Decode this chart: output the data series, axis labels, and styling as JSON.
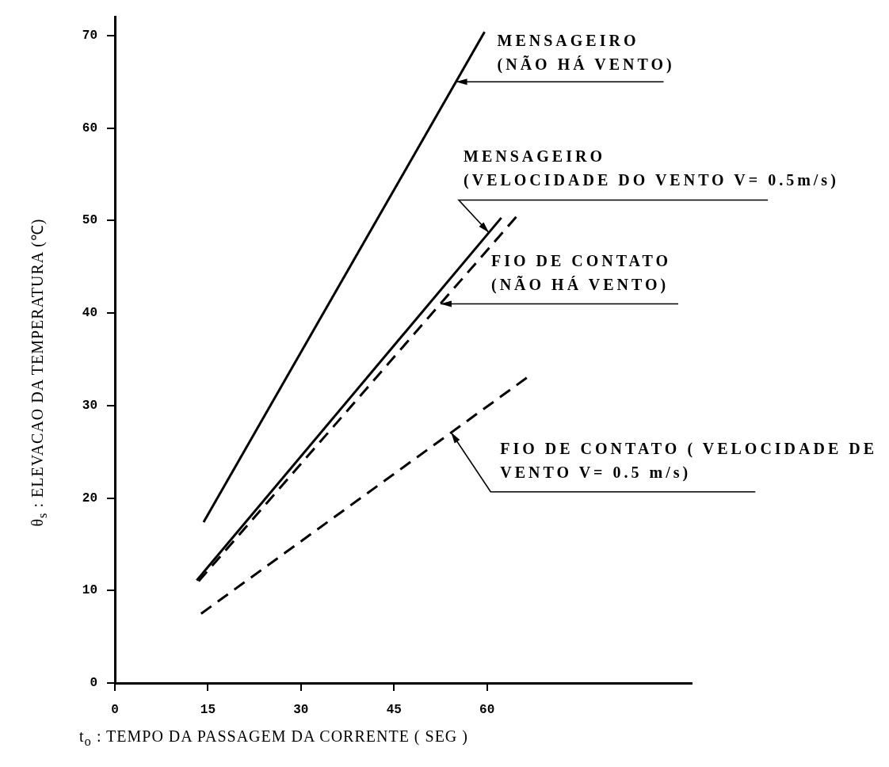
{
  "chart_data": {
    "type": "line",
    "xlabel": "t$_{o}$ : TEMPO DA PASSAGEM DA CORRENTE ( SEG )",
    "ylabel": "θ$_{s}$ : ELEVACAO DA TEMPERATURA (℃)",
    "xlim": [
      0,
      93
    ],
    "ylim": [
      0,
      72
    ],
    "xticks": [
      0,
      15,
      30,
      45,
      60
    ],
    "yticks": [
      0,
      10,
      20,
      30,
      40,
      50,
      60,
      70
    ],
    "grid": false,
    "legend": false,
    "marker": "none",
    "series": [
      {
        "color": "#000000",
        "line_style": "solid",
        "x": [
          14.3,
          59.6
        ],
        "values": [
          17.4,
          70.4
        ]
      },
      {
        "color": "#000000",
        "line_style": "solid",
        "x": [
          13.2,
          62.3
        ],
        "values": [
          11.1,
          50.3
        ]
      },
      {
        "color": "#000000",
        "line_style": "dashed",
        "x": [
          13.5,
          64.7
        ],
        "values": [
          11,
          50.4
        ]
      },
      {
        "color": "#000000",
        "line_style": "dashed",
        "x": [
          13.9,
          66.4
        ],
        "values": [
          7.5,
          33
        ]
      }
    ],
    "annotations": [
      {
        "text": "MENSAGEIRO\n(NÃO HÁ VENTO)",
        "x": 55,
        "y": 65
      },
      {
        "text": "MENSAGEIRO\n(VELOCIDADE DO VENTO V= 0.5m/s)",
        "x": 60.3,
        "y": 48.7
      },
      {
        "text": "FIO DE CONTATO\n(NÃO HÁ VENTO)",
        "x": 52.5,
        "y": 41
      },
      {
        "text": "FIO DE CONTATO ( VELOCIDADE DE\nVENTO V= 0.5 m/s)",
        "x": 54.2,
        "y": 27.1
      }
    ]
  }
}
